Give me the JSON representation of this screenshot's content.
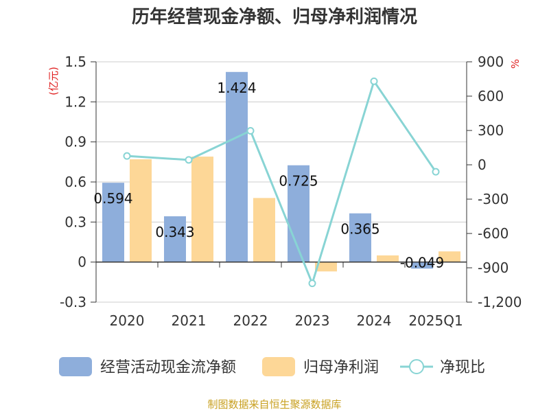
{
  "chart_data": {
    "type": "bar",
    "title": "历年经营现金净额、归母净利润情况",
    "categories": [
      "2020",
      "2021",
      "2022",
      "2023",
      "2024",
      "2025Q1"
    ],
    "left_axis": {
      "unit": "(亿元)",
      "ylim": [
        -0.3,
        1.5
      ],
      "ticks": [
        1.5,
        1.2,
        0.9,
        0.6,
        0.3,
        0,
        -0.3
      ],
      "tick_labels": [
        "1.5",
        "1.2",
        "0.9",
        "0.6",
        "0.3",
        "0",
        "-0.3"
      ]
    },
    "right_axis": {
      "unit": "%",
      "ylim": [
        -1200,
        900
      ],
      "ticks": [
        900,
        600,
        300,
        0,
        -300,
        -600,
        -900,
        -1200
      ],
      "tick_labels": [
        "900",
        "600",
        "300",
        "0",
        "-300",
        "-600",
        "-900",
        "-1,200"
      ]
    },
    "series": [
      {
        "name": "经营活动现金流净额",
        "type": "bar",
        "axis": "left",
        "color": "#8eaedb",
        "values": [
          0.594,
          0.343,
          1.424,
          0.725,
          0.365,
          -0.049
        ],
        "labels": [
          "0.594",
          "0.343",
          "1.424",
          "0.725",
          "0.365",
          "-0.049"
        ]
      },
      {
        "name": "归母净利润",
        "type": "bar",
        "axis": "left",
        "color": "#fdd797",
        "values": [
          0.77,
          0.79,
          0.48,
          -0.07,
          0.05,
          0.08
        ]
      },
      {
        "name": "净现比",
        "type": "line",
        "axis": "right",
        "color": "#88d4d4",
        "values": [
          77,
          43,
          297,
          -1036,
          730,
          -61
        ]
      }
    ],
    "grid": true,
    "legend_position": "bottom"
  },
  "source_text": "制图数据来自恒生聚源数据库"
}
